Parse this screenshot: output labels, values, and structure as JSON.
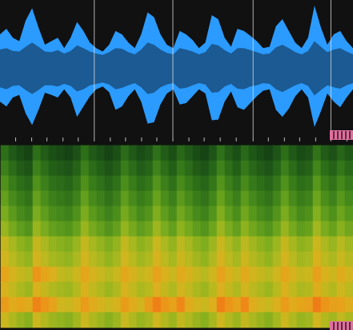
{
  "chart_data": [
    {
      "type": "area",
      "tick_labels": false,
      "xlim": [
        0,
        440
      ],
      "ylim": [
        -1,
        1
      ],
      "xticks": [
        19,
        39,
        58,
        78,
        97,
        117,
        137,
        156,
        176,
        195,
        215,
        235,
        254,
        274,
        294,
        315,
        334,
        354,
        373,
        393,
        412,
        432
      ],
      "markers": [
        117,
        215,
        315,
        412
      ],
      "x": [
        0,
        8,
        16,
        24,
        32,
        40,
        48,
        56,
        64,
        72,
        80,
        88,
        96,
        104,
        112,
        120,
        128,
        136,
        144,
        152,
        160,
        168,
        176,
        184,
        192,
        200,
        208,
        216,
        224,
        232,
        240,
        248,
        256,
        264,
        272,
        280,
        288,
        296,
        304,
        312,
        320,
        328,
        336,
        344,
        352,
        360,
        368,
        376,
        384,
        392,
        400,
        408,
        416,
        424,
        432,
        440
      ],
      "series": [
        {
          "color": "#2b9bff",
          "values": [
            0.5,
            0.58,
            0.45,
            0.4,
            0.7,
            0.88,
            0.6,
            0.35,
            0.4,
            0.45,
            0.3,
            0.45,
            0.68,
            0.55,
            0.38,
            0.3,
            0.25,
            0.35,
            0.55,
            0.5,
            0.38,
            0.3,
            0.5,
            0.82,
            0.75,
            0.5,
            0.35,
            0.3,
            0.55,
            0.5,
            0.42,
            0.3,
            0.38,
            0.78,
            0.72,
            0.45,
            0.32,
            0.58,
            0.55,
            0.48,
            0.4,
            0.3,
            0.32,
            0.62,
            0.72,
            0.55,
            0.38,
            0.3,
            0.45,
            0.92,
            0.6,
            0.35,
            0.5,
            0.55,
            0.4,
            0.3
          ],
          "low": [
            -0.48,
            -0.55,
            -0.42,
            -0.38,
            -0.65,
            -0.82,
            -0.6,
            -0.35,
            -0.38,
            -0.42,
            -0.3,
            -0.42,
            -0.7,
            -0.55,
            -0.4,
            -0.3,
            -0.26,
            -0.34,
            -0.6,
            -0.55,
            -0.4,
            -0.3,
            -0.48,
            -0.8,
            -0.78,
            -0.52,
            -0.36,
            -0.3,
            -0.52,
            -0.5,
            -0.4,
            -0.3,
            -0.36,
            -0.75,
            -0.74,
            -0.48,
            -0.33,
            -0.56,
            -0.6,
            -0.5,
            -0.4,
            -0.32,
            -0.3,
            -0.6,
            -0.7,
            -0.58,
            -0.4,
            -0.3,
            -0.42,
            -0.85,
            -0.62,
            -0.36,
            -0.48,
            -0.56,
            -0.42,
            -0.3
          ]
        },
        {
          "color": "#1b5a92",
          "values": [
            0.28,
            0.3,
            0.26,
            0.25,
            0.32,
            0.38,
            0.32,
            0.25,
            0.24,
            0.27,
            0.22,
            0.26,
            0.34,
            0.3,
            0.25,
            0.22,
            0.2,
            0.24,
            0.3,
            0.29,
            0.24,
            0.21,
            0.28,
            0.38,
            0.35,
            0.28,
            0.23,
            0.21,
            0.3,
            0.28,
            0.25,
            0.21,
            0.24,
            0.36,
            0.34,
            0.27,
            0.22,
            0.3,
            0.3,
            0.27,
            0.24,
            0.21,
            0.22,
            0.31,
            0.35,
            0.3,
            0.24,
            0.21,
            0.26,
            0.4,
            0.32,
            0.24,
            0.28,
            0.3,
            0.25,
            0.21
          ],
          "low": [
            -0.27,
            -0.3,
            -0.25,
            -0.24,
            -0.31,
            -0.37,
            -0.31,
            -0.24,
            -0.24,
            -0.26,
            -0.22,
            -0.25,
            -0.33,
            -0.3,
            -0.24,
            -0.22,
            -0.2,
            -0.23,
            -0.3,
            -0.28,
            -0.24,
            -0.21,
            -0.27,
            -0.37,
            -0.35,
            -0.27,
            -0.23,
            -0.21,
            -0.29,
            -0.28,
            -0.24,
            -0.21,
            -0.23,
            -0.35,
            -0.34,
            -0.26,
            -0.22,
            -0.29,
            -0.3,
            -0.26,
            -0.24,
            -0.21,
            -0.22,
            -0.3,
            -0.34,
            -0.29,
            -0.24,
            -0.21,
            -0.25,
            -0.39,
            -0.31,
            -0.24,
            -0.27,
            -0.29,
            -0.24,
            -0.21
          ]
        }
      ]
    },
    {
      "type": "heatmap",
      "tick_labels": false,
      "zlim": [
        0,
        1
      ],
      "values": [
        [
          0.25,
          0.18,
          0.13,
          0.1,
          0.25,
          0.19,
          0.14,
          0.12,
          0.1,
          0.15,
          0.25,
          0.18,
          0.14,
          0.1,
          0.14,
          0.24,
          0.18,
          0.13,
          0.16,
          0.26,
          0.19,
          0.14,
          0.23,
          0.18,
          0.13,
          0.1,
          0.16,
          0.26,
          0.19,
          0.14,
          0.23,
          0.17,
          0.13,
          0.1,
          0.16,
          0.25,
          0.18,
          0.13,
          0.15,
          0.27,
          0.19,
          0.15,
          0.22,
          0.17
        ],
        [
          0.31,
          0.24,
          0.19,
          0.16,
          0.31,
          0.25,
          0.2,
          0.18,
          0.16,
          0.21,
          0.31,
          0.24,
          0.2,
          0.16,
          0.2,
          0.3,
          0.24,
          0.19,
          0.22,
          0.32,
          0.25,
          0.2,
          0.29,
          0.24,
          0.19,
          0.16,
          0.22,
          0.32,
          0.25,
          0.2,
          0.29,
          0.23,
          0.19,
          0.16,
          0.22,
          0.31,
          0.24,
          0.19,
          0.21,
          0.33,
          0.25,
          0.21,
          0.28,
          0.23
        ],
        [
          0.37,
          0.3,
          0.25,
          0.22,
          0.37,
          0.31,
          0.26,
          0.24,
          0.22,
          0.27,
          0.37,
          0.3,
          0.26,
          0.22,
          0.26,
          0.36,
          0.3,
          0.25,
          0.28,
          0.38,
          0.31,
          0.26,
          0.35,
          0.3,
          0.25,
          0.22,
          0.28,
          0.38,
          0.31,
          0.26,
          0.35,
          0.29,
          0.25,
          0.22,
          0.28,
          0.37,
          0.3,
          0.25,
          0.27,
          0.39,
          0.31,
          0.27,
          0.34,
          0.29
        ],
        [
          0.42,
          0.35,
          0.3,
          0.27,
          0.42,
          0.36,
          0.31,
          0.29,
          0.27,
          0.32,
          0.42,
          0.35,
          0.31,
          0.27,
          0.31,
          0.41,
          0.35,
          0.3,
          0.33,
          0.43,
          0.36,
          0.31,
          0.4,
          0.35,
          0.3,
          0.27,
          0.33,
          0.43,
          0.36,
          0.31,
          0.4,
          0.34,
          0.3,
          0.27,
          0.33,
          0.42,
          0.35,
          0.3,
          0.32,
          0.44,
          0.36,
          0.32,
          0.39,
          0.34
        ],
        [
          0.47,
          0.4,
          0.35,
          0.32,
          0.47,
          0.41,
          0.36,
          0.34,
          0.32,
          0.37,
          0.47,
          0.4,
          0.36,
          0.32,
          0.36,
          0.46,
          0.4,
          0.35,
          0.38,
          0.48,
          0.41,
          0.36,
          0.45,
          0.4,
          0.35,
          0.32,
          0.38,
          0.48,
          0.41,
          0.36,
          0.45,
          0.39,
          0.35,
          0.32,
          0.38,
          0.47,
          0.4,
          0.35,
          0.37,
          0.49,
          0.41,
          0.37,
          0.44,
          0.39
        ],
        [
          0.53,
          0.46,
          0.41,
          0.38,
          0.53,
          0.47,
          0.42,
          0.4,
          0.38,
          0.43,
          0.53,
          0.46,
          0.42,
          0.38,
          0.42,
          0.52,
          0.46,
          0.41,
          0.44,
          0.54,
          0.47,
          0.42,
          0.51,
          0.46,
          0.41,
          0.38,
          0.44,
          0.54,
          0.47,
          0.42,
          0.51,
          0.45,
          0.41,
          0.38,
          0.44,
          0.53,
          0.46,
          0.41,
          0.43,
          0.55,
          0.47,
          0.43,
          0.5,
          0.45
        ],
        [
          0.63,
          0.56,
          0.51,
          0.48,
          0.63,
          0.57,
          0.52,
          0.5,
          0.48,
          0.53,
          0.63,
          0.56,
          0.52,
          0.48,
          0.52,
          0.62,
          0.56,
          0.51,
          0.54,
          0.64,
          0.57,
          0.52,
          0.61,
          0.56,
          0.51,
          0.48,
          0.54,
          0.64,
          0.57,
          0.52,
          0.61,
          0.55,
          0.51,
          0.48,
          0.54,
          0.63,
          0.56,
          0.51,
          0.53,
          0.65,
          0.57,
          0.53,
          0.6,
          0.55
        ],
        [
          0.67,
          0.6,
          0.55,
          0.52,
          0.67,
          0.61,
          0.56,
          0.54,
          0.52,
          0.57,
          0.67,
          0.6,
          0.56,
          0.52,
          0.56,
          0.66,
          0.6,
          0.55,
          0.58,
          0.68,
          0.61,
          0.56,
          0.65,
          0.6,
          0.55,
          0.52,
          0.58,
          0.68,
          0.61,
          0.56,
          0.65,
          0.59,
          0.55,
          0.52,
          0.58,
          0.67,
          0.6,
          0.55,
          0.57,
          0.69,
          0.61,
          0.57,
          0.64,
          0.59
        ],
        [
          0.75,
          0.68,
          0.63,
          0.6,
          0.81,
          0.75,
          0.7,
          0.62,
          0.6,
          0.65,
          0.75,
          0.68,
          0.64,
          0.6,
          0.64,
          0.74,
          0.68,
          0.63,
          0.66,
          0.76,
          0.69,
          0.64,
          0.73,
          0.68,
          0.63,
          0.6,
          0.66,
          0.76,
          0.69,
          0.64,
          0.73,
          0.67,
          0.63,
          0.6,
          0.66,
          0.75,
          0.68,
          0.63,
          0.65,
          0.77,
          0.69,
          0.65,
          0.72,
          0.67
        ],
        [
          0.69,
          0.62,
          0.57,
          0.54,
          0.69,
          0.63,
          0.58,
          0.56,
          0.54,
          0.59,
          0.69,
          0.62,
          0.58,
          0.54,
          0.58,
          0.68,
          0.62,
          0.57,
          0.6,
          0.7,
          0.63,
          0.58,
          0.67,
          0.62,
          0.57,
          0.54,
          0.6,
          0.7,
          0.63,
          0.58,
          0.67,
          0.61,
          0.57,
          0.54,
          0.6,
          0.69,
          0.62,
          0.57,
          0.59,
          0.71,
          0.63,
          0.59,
          0.66,
          0.61
        ],
        [
          0.79,
          0.72,
          0.75,
          0.72,
          0.87,
          0.81,
          0.76,
          0.66,
          0.64,
          0.69,
          0.79,
          0.72,
          0.68,
          0.64,
          0.68,
          0.78,
          0.72,
          0.67,
          0.78,
          0.88,
          0.81,
          0.76,
          0.85,
          0.72,
          0.67,
          0.64,
          0.7,
          0.88,
          0.81,
          0.76,
          0.85,
          0.71,
          0.67,
          0.64,
          0.7,
          0.79,
          0.72,
          0.75,
          0.77,
          0.89,
          0.81,
          0.77,
          0.76,
          0.71
        ],
        [
          0.65,
          0.58,
          0.53,
          0.5,
          0.65,
          0.59,
          0.54,
          0.52,
          0.5,
          0.55,
          0.65,
          0.58,
          0.54,
          0.5,
          0.54,
          0.64,
          0.58,
          0.53,
          0.56,
          0.66,
          0.59,
          0.54,
          0.63,
          0.58,
          0.53,
          0.5,
          0.56,
          0.66,
          0.59,
          0.54,
          0.63,
          0.57,
          0.53,
          0.5,
          0.56,
          0.65,
          0.58,
          0.53,
          0.55,
          0.67,
          0.59,
          0.55,
          0.62,
          0.57
        ]
      ]
    }
  ]
}
